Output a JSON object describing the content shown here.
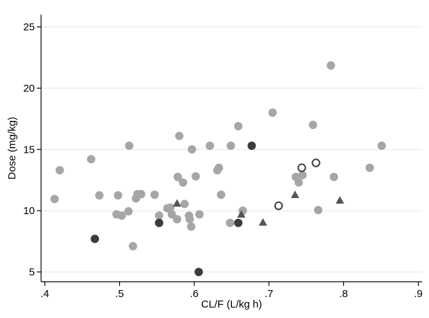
{
  "chart_data": {
    "type": "scatter",
    "xlabel": "CL/F (L/kg h)",
    "ylabel": "Dose (mg/kg)",
    "xlim": [
      0.395,
      0.905
    ],
    "ylim": [
      4.2,
      26.0
    ],
    "x_ticks": [
      0.4,
      0.5,
      0.6,
      0.7,
      0.8,
      0.9
    ],
    "x_tick_labels": [
      ".4",
      ".5",
      ".6",
      ".7",
      ".8",
      ".9"
    ],
    "y_ticks": [
      5,
      10,
      15,
      20,
      25
    ],
    "y_tick_labels": [
      "5",
      "10",
      "15",
      "20",
      "25"
    ],
    "grid": "horizontal",
    "legend": "none",
    "colors": {
      "light_circle": "#a6a6a6",
      "dark_circle": "#3c3c3c",
      "triangle": "#555555",
      "open_circle_stroke": "#404040",
      "gridline": "#e6e6e6",
      "axis": "#000000"
    },
    "series": [
      {
        "marker": "light-filled-circle",
        "points": [
          [
            0.413,
            10.95
          ],
          [
            0.42,
            13.3
          ],
          [
            0.462,
            14.2
          ],
          [
            0.473,
            11.25
          ],
          [
            0.496,
            9.7
          ],
          [
            0.498,
            11.25
          ],
          [
            0.503,
            9.6
          ],
          [
            0.512,
            9.95
          ],
          [
            0.513,
            15.3
          ],
          [
            0.518,
            7.1
          ],
          [
            0.522,
            11.0
          ],
          [
            0.524,
            11.35
          ],
          [
            0.529,
            11.35
          ],
          [
            0.547,
            11.3
          ],
          [
            0.553,
            9.6
          ],
          [
            0.564,
            10.2
          ],
          [
            0.568,
            10.25
          ],
          [
            0.57,
            9.7
          ],
          [
            0.577,
            9.3
          ],
          [
            0.578,
            12.75
          ],
          [
            0.58,
            16.1
          ],
          [
            0.585,
            12.3
          ],
          [
            0.587,
            10.55
          ],
          [
            0.593,
            9.6
          ],
          [
            0.594,
            9.3
          ],
          [
            0.596,
            8.7
          ],
          [
            0.597,
            15.0
          ],
          [
            0.602,
            12.8
          ],
          [
            0.607,
            9.7
          ],
          [
            0.621,
            15.3
          ],
          [
            0.631,
            13.3
          ],
          [
            0.633,
            13.5
          ],
          [
            0.636,
            11.3
          ],
          [
            0.648,
            9.0
          ],
          [
            0.649,
            15.3
          ],
          [
            0.659,
            16.9
          ],
          [
            0.665,
            10.0
          ],
          [
            0.705,
            18.0
          ],
          [
            0.736,
            12.75
          ],
          [
            0.74,
            12.3
          ],
          [
            0.745,
            12.9
          ],
          [
            0.759,
            17.0
          ],
          [
            0.766,
            10.05
          ],
          [
            0.783,
            21.85
          ],
          [
            0.787,
            12.75
          ],
          [
            0.835,
            13.5
          ],
          [
            0.851,
            15.3
          ]
        ]
      },
      {
        "marker": "dark-filled-circle",
        "points": [
          [
            0.467,
            7.7
          ],
          [
            0.553,
            9.0
          ],
          [
            0.606,
            5.0
          ],
          [
            0.659,
            9.0
          ],
          [
            0.677,
            15.3
          ]
        ]
      },
      {
        "marker": "filled-triangle",
        "points": [
          [
            0.577,
            10.6
          ],
          [
            0.663,
            9.7
          ],
          [
            0.692,
            9.05
          ],
          [
            0.735,
            11.3
          ],
          [
            0.795,
            10.85
          ]
        ]
      },
      {
        "marker": "open-circle",
        "points": [
          [
            0.713,
            10.4
          ],
          [
            0.744,
            13.5
          ],
          [
            0.763,
            13.9
          ]
        ]
      }
    ]
  }
}
